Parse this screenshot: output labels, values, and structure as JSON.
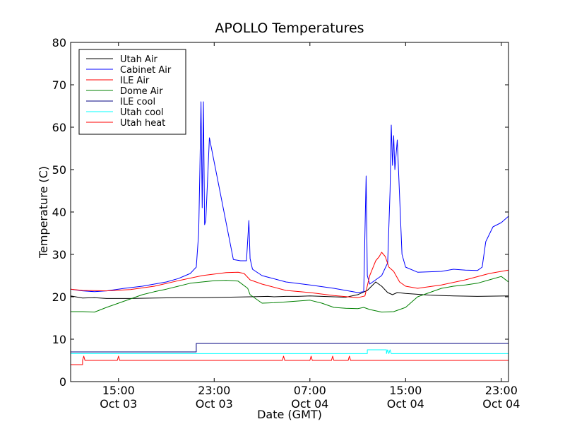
{
  "chart_data": {
    "type": "line",
    "title": "APOLLO Temperatures",
    "xlabel": "Date (GMT)",
    "ylabel": "Temperature (C)",
    "ylim": [
      0,
      80
    ],
    "xlim_hours": [
      11.0,
      47.6
    ],
    "grid": false,
    "legend_position": "top-left",
    "yticks": [
      "0",
      "10",
      "20",
      "30",
      "40",
      "50",
      "60",
      "70",
      "80"
    ],
    "xticks": [
      {
        "time": "15:00",
        "date": "Oct 03",
        "hours": 15
      },
      {
        "time": "23:00",
        "date": "Oct 03",
        "hours": 23
      },
      {
        "time": "07:00",
        "date": "Oct 04",
        "hours": 31
      },
      {
        "time": "15:00",
        "date": "Oct 04",
        "hours": 39
      },
      {
        "time": "23:00",
        "date": "Oct 04",
        "hours": 47
      }
    ],
    "series": [
      {
        "name": "Utah Air",
        "color": "#000000",
        "points": [
          [
            11.0,
            20.2
          ],
          [
            12.0,
            19.7
          ],
          [
            13.0,
            19.8
          ],
          [
            14.0,
            19.6
          ],
          [
            16.0,
            19.6
          ],
          [
            18.0,
            19.7
          ],
          [
            20.0,
            19.8
          ],
          [
            22.0,
            19.8
          ],
          [
            24.0,
            19.9
          ],
          [
            26.0,
            20.0
          ],
          [
            27.5,
            20.1
          ],
          [
            28.0,
            20.0
          ],
          [
            29.0,
            20.1
          ],
          [
            30.0,
            20.1
          ],
          [
            31.0,
            20.2
          ],
          [
            32.0,
            20.1
          ],
          [
            33.0,
            20.0
          ],
          [
            34.0,
            19.9
          ],
          [
            35.0,
            20.5
          ],
          [
            35.8,
            21.5
          ],
          [
            36.5,
            23.5
          ],
          [
            37.0,
            22.5
          ],
          [
            37.5,
            21.0
          ],
          [
            37.9,
            20.5
          ],
          [
            38.3,
            21.0
          ],
          [
            39.0,
            20.8
          ],
          [
            41.0,
            20.4
          ],
          [
            43.0,
            20.2
          ],
          [
            45.0,
            20.1
          ],
          [
            47.6,
            20.2
          ]
        ]
      },
      {
        "name": "Cabinet Air",
        "color": "#0000ff",
        "points": [
          [
            11.0,
            21.8
          ],
          [
            12.0,
            21.4
          ],
          [
            13.0,
            21.2
          ],
          [
            14.0,
            21.4
          ],
          [
            15.5,
            22.0
          ],
          [
            17.0,
            22.5
          ],
          [
            19.0,
            23.5
          ],
          [
            20.0,
            24.3
          ],
          [
            21.0,
            25.5
          ],
          [
            21.5,
            27.0
          ],
          [
            21.7,
            35.0
          ],
          [
            21.8,
            50.0
          ],
          [
            21.9,
            66.0
          ],
          [
            22.0,
            41.0
          ],
          [
            22.1,
            66.0
          ],
          [
            22.2,
            37.0
          ],
          [
            22.3,
            38.0
          ],
          [
            22.6,
            57.5
          ],
          [
            23.4,
            46.0
          ],
          [
            24.6,
            28.8
          ],
          [
            25.2,
            28.5
          ],
          [
            25.7,
            28.5
          ],
          [
            25.9,
            38.0
          ],
          [
            26.0,
            29.0
          ],
          [
            26.2,
            26.5
          ],
          [
            27.0,
            25.0
          ],
          [
            29.0,
            23.5
          ],
          [
            31.0,
            22.8
          ],
          [
            33.0,
            22.0
          ],
          [
            35.0,
            21.0
          ],
          [
            35.5,
            21.2
          ],
          [
            35.7,
            48.5
          ],
          [
            35.8,
            25.0
          ],
          [
            36.0,
            23.0
          ],
          [
            37.0,
            25.0
          ],
          [
            37.5,
            28.0
          ],
          [
            37.7,
            45.0
          ],
          [
            37.8,
            60.5
          ],
          [
            37.9,
            51.0
          ],
          [
            38.0,
            58.0
          ],
          [
            38.1,
            50.0
          ],
          [
            38.3,
            57.0
          ],
          [
            38.7,
            30.0
          ],
          [
            39.0,
            27.0
          ],
          [
            40.0,
            25.8
          ],
          [
            42.0,
            26.0
          ],
          [
            43.0,
            26.5
          ],
          [
            44.0,
            26.3
          ],
          [
            45.0,
            26.2
          ],
          [
            45.4,
            27.0
          ],
          [
            45.7,
            33.0
          ],
          [
            46.3,
            36.5
          ],
          [
            47.0,
            37.5
          ],
          [
            47.6,
            39.0
          ]
        ]
      },
      {
        "name": "ILE Air",
        "color": "#ff0000",
        "points": [
          [
            11.0,
            21.8
          ],
          [
            12.0,
            21.5
          ],
          [
            14.0,
            21.4
          ],
          [
            16.0,
            21.7
          ],
          [
            18.0,
            22.5
          ],
          [
            20.0,
            23.8
          ],
          [
            22.0,
            25.0
          ],
          [
            24.0,
            25.7
          ],
          [
            25.0,
            25.8
          ],
          [
            25.5,
            25.5
          ],
          [
            26.0,
            24.0
          ],
          [
            27.0,
            23.0
          ],
          [
            29.0,
            21.5
          ],
          [
            31.0,
            21.0
          ],
          [
            33.0,
            20.3
          ],
          [
            35.0,
            19.8
          ],
          [
            35.6,
            20.2
          ],
          [
            36.0,
            25.0
          ],
          [
            36.5,
            28.5
          ],
          [
            36.8,
            29.5
          ],
          [
            37.0,
            30.5
          ],
          [
            37.3,
            29.5
          ],
          [
            37.6,
            27.0
          ],
          [
            38.0,
            26.0
          ],
          [
            38.5,
            23.5
          ],
          [
            39.0,
            22.5
          ],
          [
            40.0,
            22.0
          ],
          [
            42.0,
            22.8
          ],
          [
            44.0,
            24.0
          ],
          [
            46.0,
            25.5
          ],
          [
            47.6,
            26.3
          ]
        ]
      },
      {
        "name": "Dome Air",
        "color": "#008000",
        "points": [
          [
            11.0,
            16.5
          ],
          [
            12.0,
            16.5
          ],
          [
            13.0,
            16.4
          ],
          [
            14.0,
            17.5
          ],
          [
            15.0,
            18.5
          ],
          [
            16.0,
            19.5
          ],
          [
            17.0,
            20.5
          ],
          [
            18.0,
            21.2
          ],
          [
            19.0,
            21.8
          ],
          [
            20.0,
            22.5
          ],
          [
            21.0,
            23.2
          ],
          [
            22.0,
            23.5
          ],
          [
            23.0,
            23.8
          ],
          [
            24.0,
            23.9
          ],
          [
            25.0,
            23.7
          ],
          [
            25.8,
            22.0
          ],
          [
            26.0,
            20.5
          ],
          [
            27.0,
            18.5
          ],
          [
            28.0,
            18.6
          ],
          [
            29.0,
            18.8
          ],
          [
            30.0,
            19.0
          ],
          [
            31.0,
            19.2
          ],
          [
            32.0,
            18.5
          ],
          [
            33.0,
            17.5
          ],
          [
            34.0,
            17.3
          ],
          [
            35.0,
            17.2
          ],
          [
            35.5,
            17.5
          ],
          [
            36.0,
            17.0
          ],
          [
            37.0,
            16.4
          ],
          [
            38.0,
            16.5
          ],
          [
            39.0,
            17.5
          ],
          [
            40.0,
            20.0
          ],
          [
            41.0,
            21.0
          ],
          [
            42.0,
            22.0
          ],
          [
            43.0,
            22.5
          ],
          [
            44.0,
            22.8
          ],
          [
            45.0,
            23.2
          ],
          [
            46.0,
            24.0
          ],
          [
            47.0,
            24.8
          ],
          [
            47.6,
            23.5
          ]
        ]
      },
      {
        "name": "ILE cool",
        "color": "#000080",
        "points": [
          [
            11.0,
            7.0
          ],
          [
            21.5,
            7.0
          ],
          [
            21.5,
            9.0
          ],
          [
            47.6,
            9.0
          ]
        ]
      },
      {
        "name": "Utah cool",
        "color": "#00ffff",
        "points": [
          [
            11.0,
            6.6
          ],
          [
            35.8,
            6.6
          ],
          [
            35.8,
            7.5
          ],
          [
            37.4,
            7.5
          ],
          [
            37.4,
            6.6
          ],
          [
            37.5,
            7.5
          ],
          [
            37.6,
            6.6
          ],
          [
            37.7,
            7.5
          ],
          [
            37.8,
            6.6
          ],
          [
            47.6,
            6.6
          ]
        ]
      },
      {
        "name": "Utah heat",
        "color": "#ff0000",
        "points": [
          [
            11.0,
            4.0
          ],
          [
            12.0,
            4.0
          ],
          [
            12.0,
            5.0
          ],
          [
            12.1,
            6.0
          ],
          [
            12.2,
            5.0
          ],
          [
            14.9,
            5.0
          ],
          [
            15.0,
            6.0
          ],
          [
            15.1,
            5.0
          ],
          [
            28.7,
            5.0
          ],
          [
            28.8,
            6.0
          ],
          [
            28.9,
            5.0
          ],
          [
            31.0,
            5.0
          ],
          [
            31.1,
            6.0
          ],
          [
            31.2,
            5.0
          ],
          [
            32.8,
            5.0
          ],
          [
            32.9,
            6.0
          ],
          [
            33.0,
            5.0
          ],
          [
            34.2,
            5.0
          ],
          [
            34.3,
            6.0
          ],
          [
            34.4,
            5.0
          ],
          [
            47.6,
            5.0
          ]
        ]
      }
    ]
  }
}
